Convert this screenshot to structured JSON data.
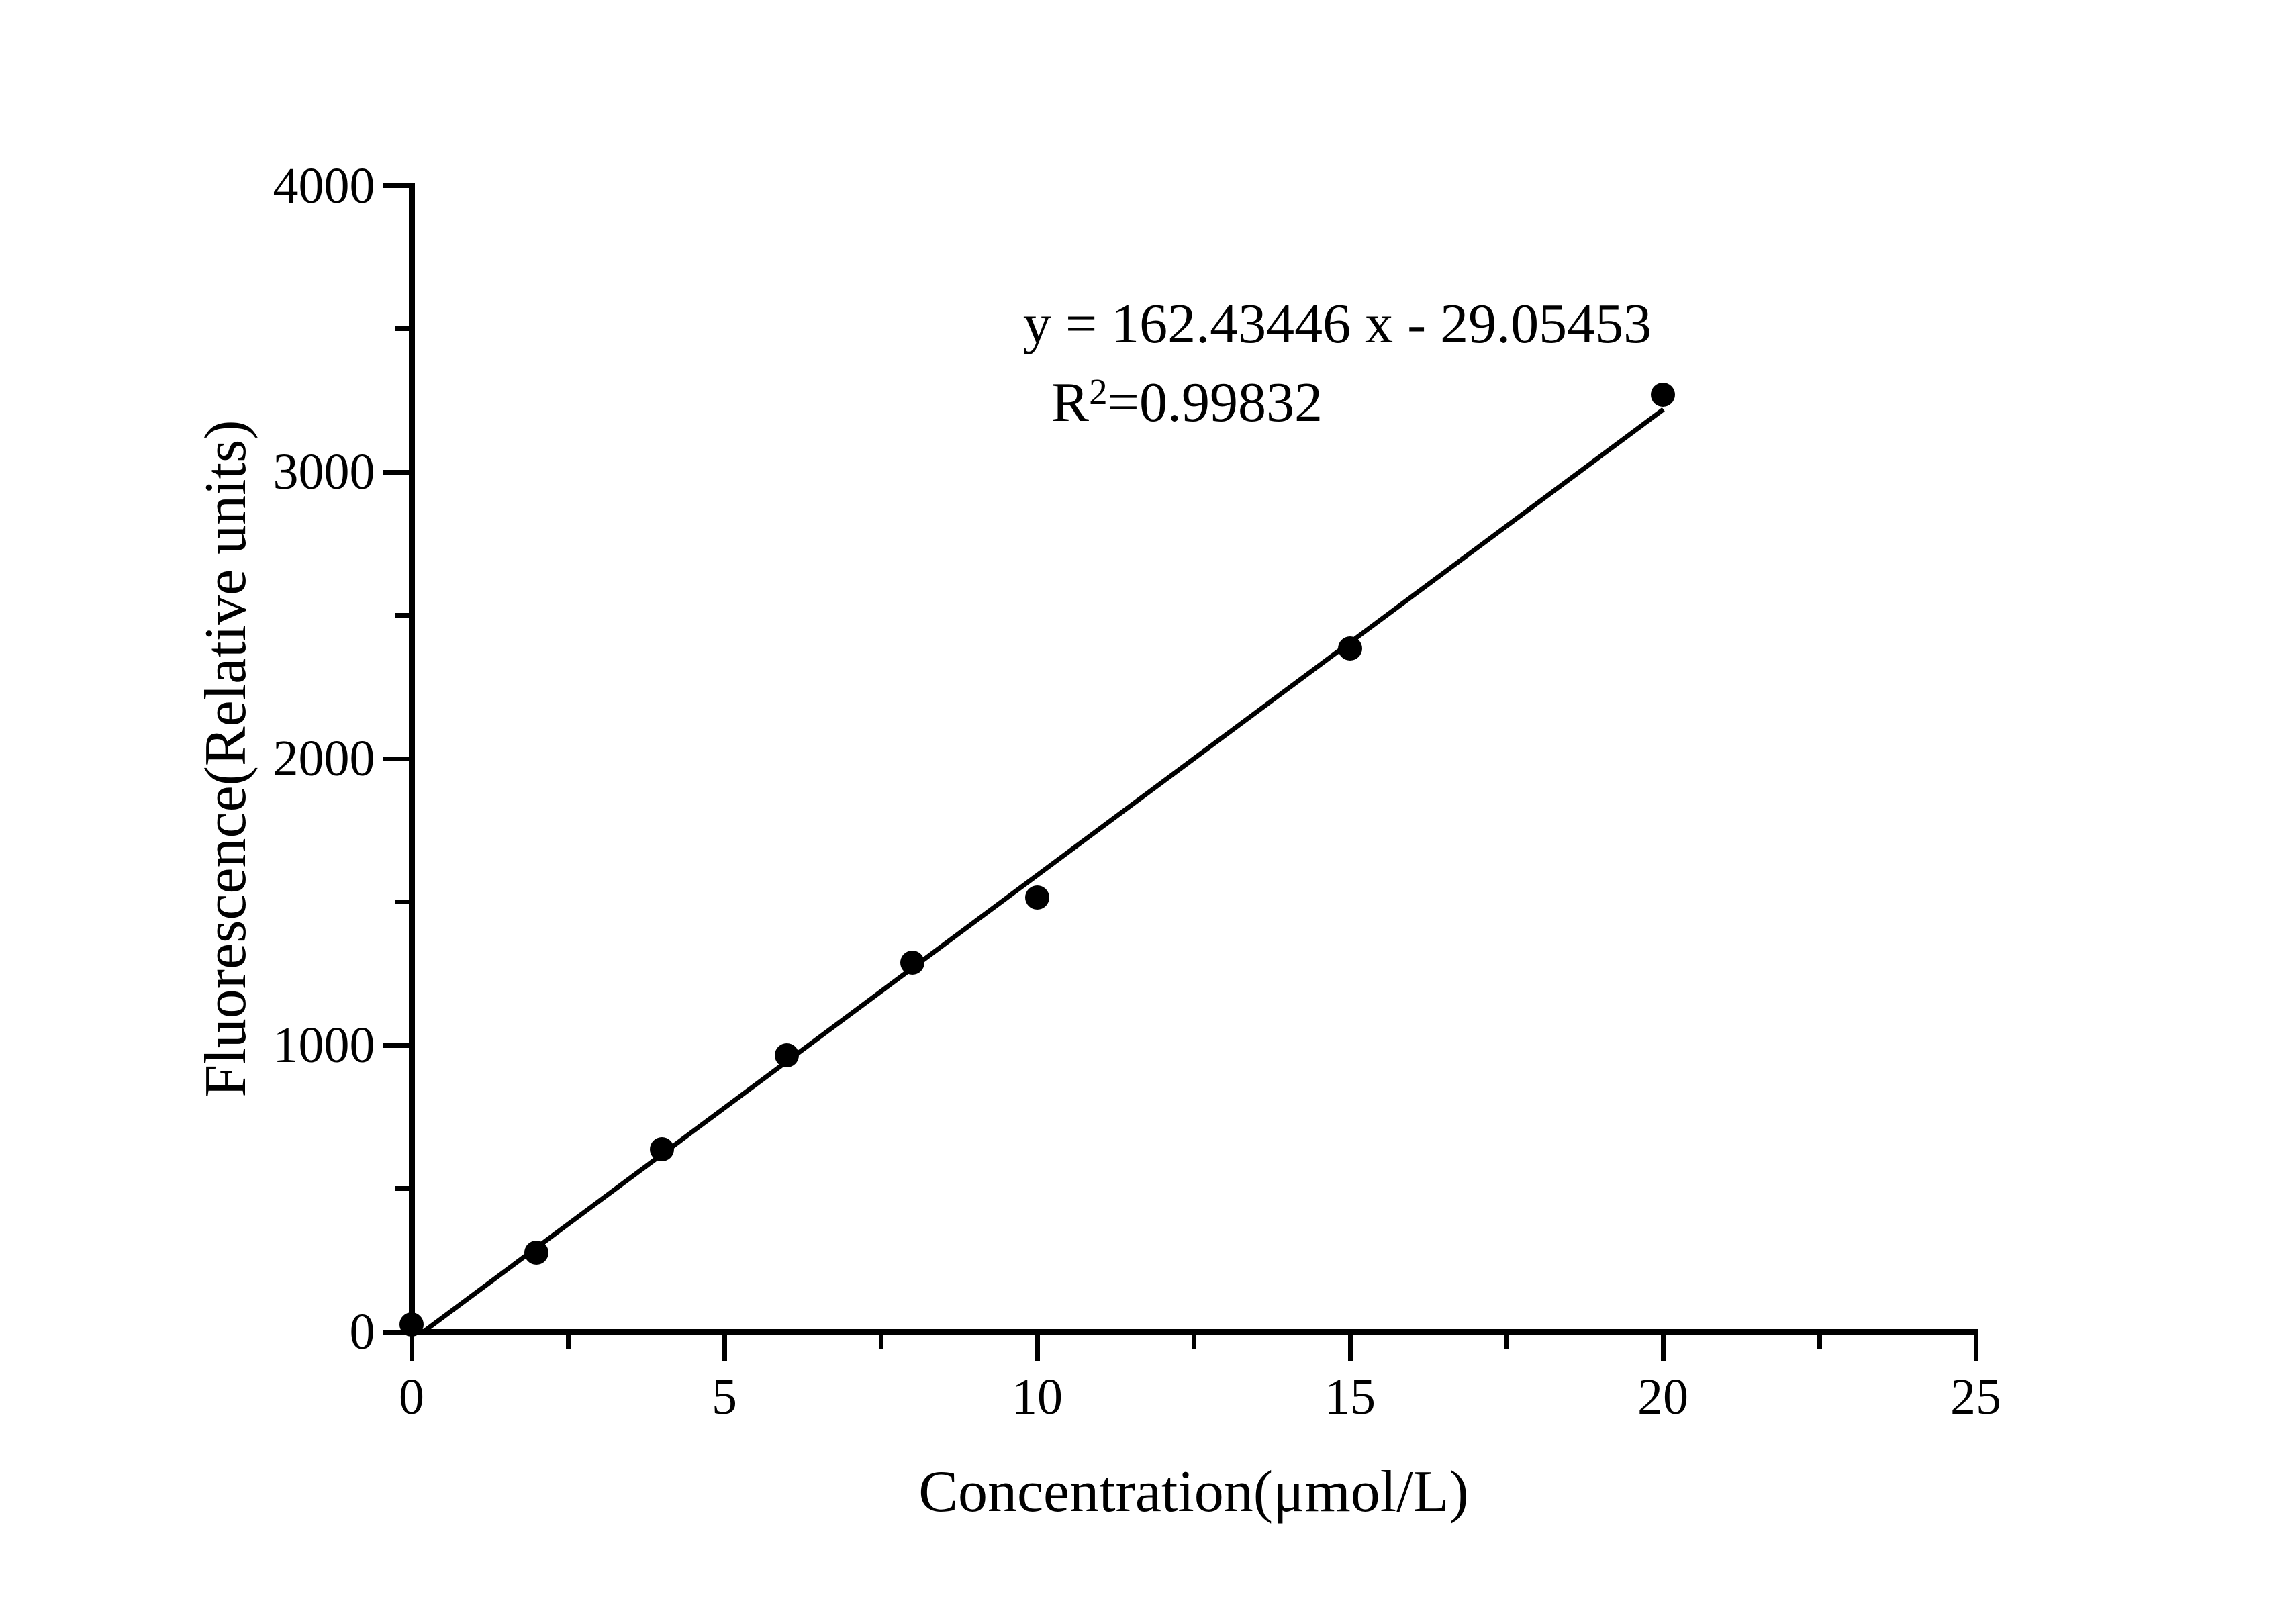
{
  "chart_data": {
    "type": "scatter",
    "title": "",
    "xlabel": "Concentration(μmol/L)",
    "ylabel": "Fluorescence(Relative units)",
    "xlim": [
      0,
      25
    ],
    "ylim": [
      0,
      4000
    ],
    "x_major_ticks": [
      0,
      5,
      10,
      15,
      20,
      25
    ],
    "x_minor_tick_step": 2.5,
    "y_major_ticks": [
      0,
      1000,
      2000,
      3000,
      4000
    ],
    "y_minor_tick_step": 500,
    "grid": "off",
    "legend": "none",
    "tick_direction": "out",
    "points": [
      {
        "x": 0,
        "y": 25
      },
      {
        "x": 2,
        "y": 276
      },
      {
        "x": 4,
        "y": 638
      },
      {
        "x": 6,
        "y": 964
      },
      {
        "x": 8,
        "y": 1289
      },
      {
        "x": 10,
        "y": 1515
      },
      {
        "x": 15,
        "y": 2384
      },
      {
        "x": 20,
        "y": 3270
      }
    ],
    "fit_line": {
      "slope": 162.43446,
      "intercept": -29.05453,
      "x_start": 0,
      "x_end": 20
    },
    "annotations": {
      "equation": "y = 162.43446 x - 29.05453",
      "r_squared_base": "R",
      "r_squared_sup": "2",
      "r_squared_rest": "=0.99832"
    },
    "colors": {
      "foreground": "#000000",
      "background": "#ffffff"
    }
  }
}
